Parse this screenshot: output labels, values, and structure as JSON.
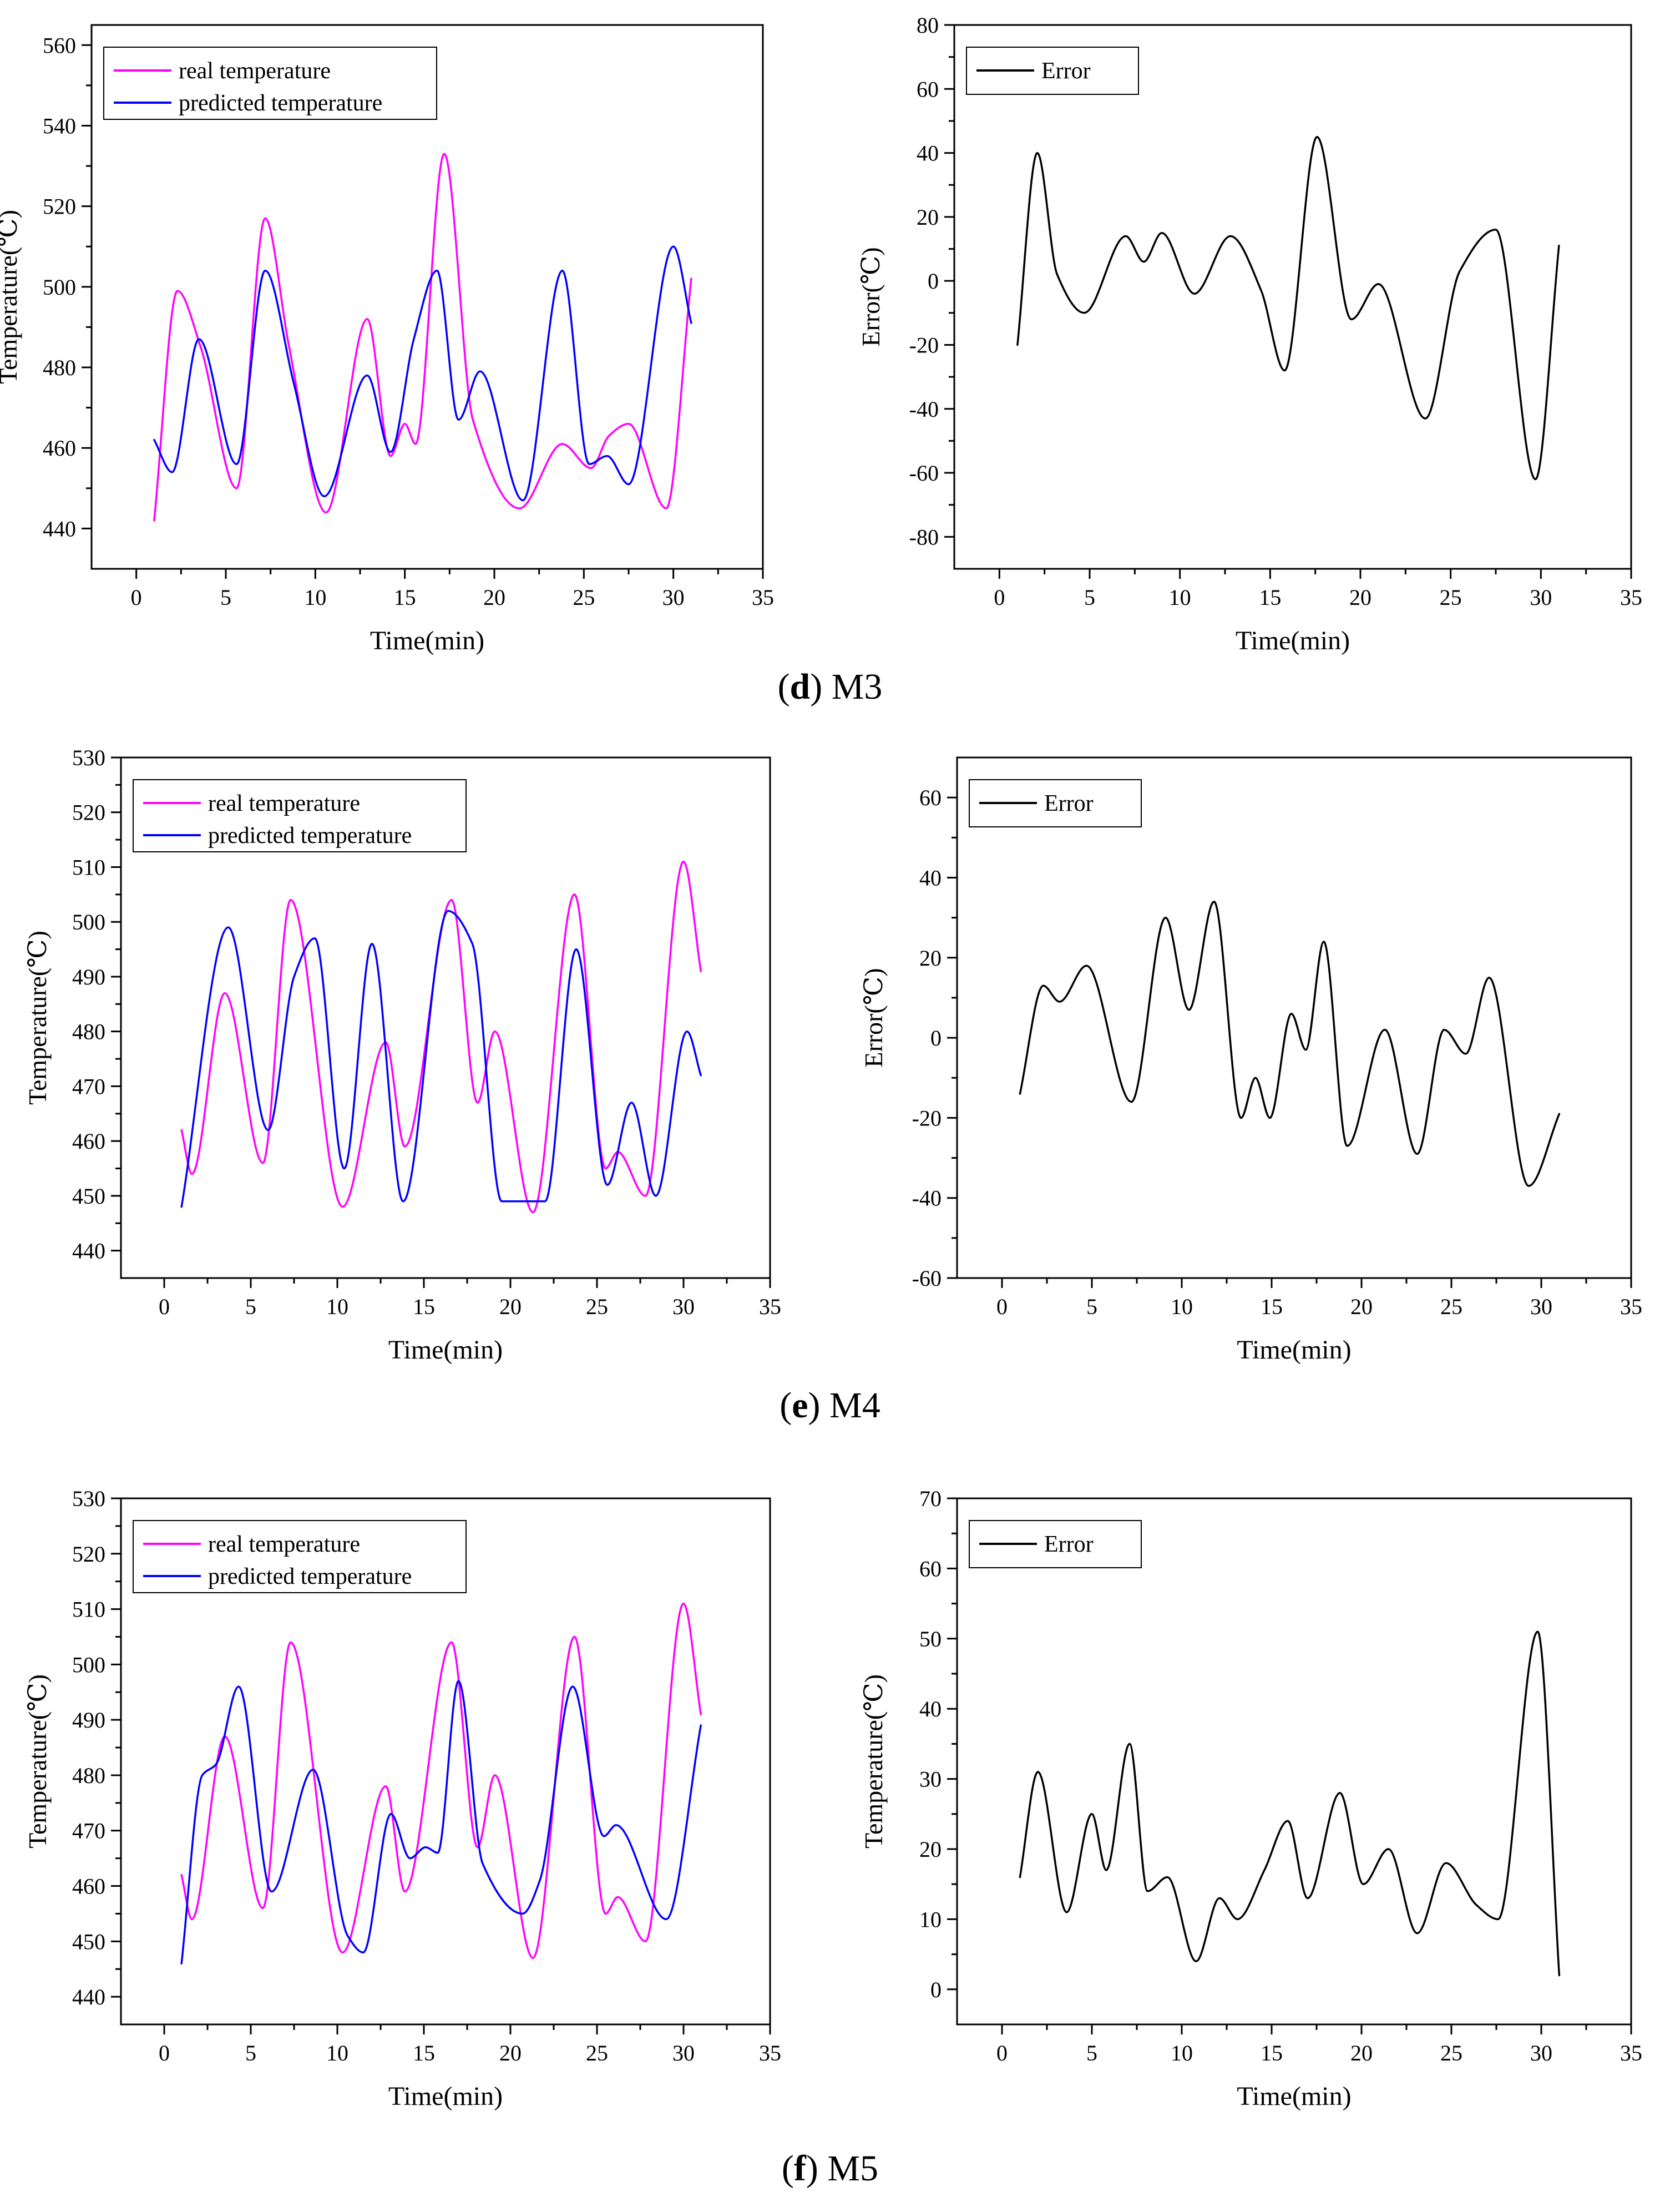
{
  "colors": {
    "real": "#ff00ff",
    "predicted": "#0000ff",
    "error": "#000000",
    "axis": "#000000"
  },
  "captions": [
    {
      "letter": "d",
      "rest": ") M3",
      "open": "("
    },
    {
      "letter": "e",
      "rest": ") M4",
      "open": "("
    },
    {
      "letter": "f",
      "rest": ") M5",
      "open": "("
    }
  ],
  "chart_data": [
    {
      "id": "d-left",
      "type": "line",
      "title": "",
      "xlabel": "Time(min)",
      "ylabel": "Temperature(℃)",
      "xlim": [
        -2.5,
        35
      ],
      "ylim": [
        430,
        565
      ],
      "xticks": [
        0,
        5,
        10,
        15,
        20,
        25,
        30,
        35
      ],
      "yticks": [
        440,
        460,
        480,
        500,
        520,
        540,
        560
      ],
      "legend": "top-left",
      "series": [
        {
          "name": "real temperature",
          "color": "#ff00ff",
          "x": [
            1,
            2.3,
            3.6,
            5.6,
            7.2,
            8.5,
            10.6,
            12.9,
            14.2,
            15.0,
            15.6,
            17.2,
            18.8,
            21.4,
            23.8,
            25.4,
            26.4,
            27.5,
            29.6,
            31
          ],
          "y": [
            442,
            499,
            485,
            450,
            517,
            486,
            444,
            492,
            458,
            466,
            461,
            533,
            467,
            445,
            461,
            455,
            463,
            466,
            445,
            502
          ]
        },
        {
          "name": "predicted temperature",
          "color": "#0000ff",
          "x": [
            1,
            2,
            3.5,
            5.6,
            7.2,
            8.8,
            10.5,
            12.9,
            14.2,
            15.5,
            16.8,
            18.0,
            19.2,
            21.6,
            23.8,
            25.3,
            26.3,
            27.5,
            30.0,
            31
          ],
          "y": [
            462,
            454,
            487,
            456,
            504,
            476,
            448,
            478,
            459,
            487,
            504,
            467,
            479,
            447,
            504,
            456,
            458,
            451,
            510,
            491
          ]
        }
      ]
    },
    {
      "id": "d-right",
      "type": "line",
      "title": "",
      "xlabel": "Time(min)",
      "ylabel": "Error(℃)",
      "xlim": [
        -2.5,
        35
      ],
      "ylim": [
        -90,
        80
      ],
      "xticks": [
        0,
        5,
        10,
        15,
        20,
        25,
        30,
        35
      ],
      "yticks": [
        -80,
        -60,
        -40,
        -20,
        0,
        20,
        40,
        60,
        80
      ],
      "legend": "top-left",
      "series": [
        {
          "name": "Error",
          "color": "#000000",
          "x": [
            1,
            2.1,
            3.2,
            4.7,
            7.0,
            8.0,
            9.0,
            10.8,
            12.8,
            14.5,
            15.8,
            17.6,
            19.5,
            21.0,
            23.6,
            25.5,
            27.5,
            29.7,
            31
          ],
          "y": [
            -20,
            40,
            2,
            -10,
            14,
            6,
            15,
            -4,
            14,
            -3,
            -28,
            45,
            -12,
            -1,
            -43,
            3,
            16,
            -62,
            11
          ]
        }
      ]
    },
    {
      "id": "e-left",
      "type": "line",
      "title": "",
      "xlabel": "Time(min)",
      "ylabel": "Temperature(℃)",
      "xlim": [
        -2.5,
        35
      ],
      "ylim": [
        435,
        530
      ],
      "xticks": [
        0,
        5,
        10,
        15,
        20,
        25,
        30,
        35
      ],
      "yticks": [
        440,
        450,
        460,
        470,
        480,
        490,
        500,
        510,
        520,
        530
      ],
      "legend": "top-left",
      "series": [
        {
          "name": "real temperature",
          "color": "#ff00ff",
          "x": [
            1,
            1.6,
            3.5,
            5.7,
            7.3,
            10.3,
            12.8,
            13.9,
            16.6,
            18.1,
            19.1,
            21.3,
            23.7,
            25.5,
            26.2,
            27.8,
            30.0,
            31
          ],
          "y": [
            462,
            454,
            487,
            456,
            504,
            448,
            478,
            459,
            504,
            467,
            480,
            447,
            505,
            455,
            458,
            450,
            511,
            491
          ]
        },
        {
          "name": "predicted temperature",
          "color": "#0000ff",
          "x": [
            1,
            3.7,
            6.0,
            7.5,
            8.7,
            10.4,
            12.0,
            13.8,
            16.4,
            17.8,
            19.5,
            22.0,
            23.8,
            25.6,
            27.0,
            28.4,
            30.2,
            31
          ],
          "y": [
            448,
            499,
            462,
            490,
            497,
            455,
            496,
            449,
            502,
            496,
            449,
            449,
            495,
            452,
            467,
            450,
            480,
            472
          ]
        }
      ]
    },
    {
      "id": "e-right",
      "type": "line",
      "title": "",
      "xlabel": "Time(min)",
      "ylabel": "Error(℃)",
      "xlim": [
        -2.5,
        35
      ],
      "ylim": [
        -60,
        70
      ],
      "xticks": [
        0,
        5,
        10,
        15,
        20,
        25,
        30,
        35
      ],
      "yticks": [
        -60,
        -40,
        -20,
        0,
        20,
        40,
        60
      ],
      "legend": "top-left",
      "series": [
        {
          "name": "Error",
          "color": "#000000",
          "x": [
            1,
            2.3,
            3.2,
            4.7,
            7.2,
            9.1,
            10.4,
            11.8,
            13.3,
            14.1,
            14.9,
            16.1,
            16.9,
            17.9,
            19.2,
            21.3,
            23.1,
            24.6,
            25.8,
            27.1,
            29.3,
            31
          ],
          "y": [
            -14,
            13,
            9,
            18,
            -16,
            30,
            7,
            34,
            -20,
            -10,
            -20,
            6,
            -3,
            24,
            -27,
            2,
            -29,
            2,
            -4,
            15,
            -37,
            -19
          ]
        }
      ]
    },
    {
      "id": "f-left",
      "type": "line",
      "title": "",
      "xlabel": "Time(min)",
      "ylabel": "Temperature(℃)",
      "xlim": [
        -2.5,
        35
      ],
      "ylim": [
        435,
        530
      ],
      "xticks": [
        0,
        5,
        10,
        15,
        20,
        25,
        30,
        35
      ],
      "yticks": [
        440,
        450,
        460,
        470,
        480,
        490,
        500,
        510,
        520,
        530
      ],
      "legend": "top-left",
      "series": [
        {
          "name": "real temperature",
          "color": "#ff00ff",
          "x": [
            1,
            1.6,
            3.5,
            5.7,
            7.3,
            10.3,
            12.8,
            13.9,
            16.6,
            18.1,
            19.1,
            21.3,
            23.7,
            25.5,
            26.2,
            27.8,
            30.0,
            31
          ],
          "y": [
            462,
            454,
            487,
            456,
            504,
            448,
            478,
            459,
            504,
            467,
            480,
            447,
            505,
            455,
            458,
            450,
            511,
            491
          ]
        },
        {
          "name": "predicted temperature",
          "color": "#0000ff",
          "x": [
            1,
            2.2,
            3.0,
            4.3,
            6.2,
            8.6,
            10.6,
            11.5,
            13.1,
            14.2,
            15.1,
            15.8,
            17.0,
            18.4,
            20.7,
            21.7,
            23.6,
            25.4,
            26.1,
            29.0,
            31
          ],
          "y": [
            446,
            480,
            482,
            496,
            459,
            481,
            451,
            448,
            473,
            465,
            467,
            466,
            497,
            464,
            455,
            461,
            496,
            469,
            471,
            454,
            489
          ]
        }
      ]
    },
    {
      "id": "f-right",
      "type": "line",
      "title": "",
      "xlabel": "Time(min)",
      "ylabel": "Temperature(℃)",
      "xlim": [
        -2.5,
        35
      ],
      "ylim": [
        -5,
        70
      ],
      "xticks": [
        0,
        5,
        10,
        15,
        20,
        25,
        30,
        35
      ],
      "yticks": [
        0,
        10,
        20,
        30,
        40,
        50,
        60,
        70
      ],
      "legend": "top-left",
      "series": [
        {
          "name": "Error",
          "color": "#000000",
          "x": [
            1,
            2.0,
            3.6,
            5.0,
            5.8,
            7.1,
            8.1,
            9.2,
            10.8,
            12.1,
            13.1,
            14.6,
            15.9,
            17.0,
            18.8,
            20.1,
            21.5,
            23.1,
            24.7,
            26.4,
            27.6,
            29.8,
            31
          ],
          "y": [
            16,
            31,
            11,
            25,
            17,
            35,
            14,
            16,
            4,
            13,
            10,
            17,
            24,
            13,
            28,
            15,
            20,
            8,
            18,
            12,
            10,
            51,
            2
          ]
        }
      ]
    }
  ]
}
